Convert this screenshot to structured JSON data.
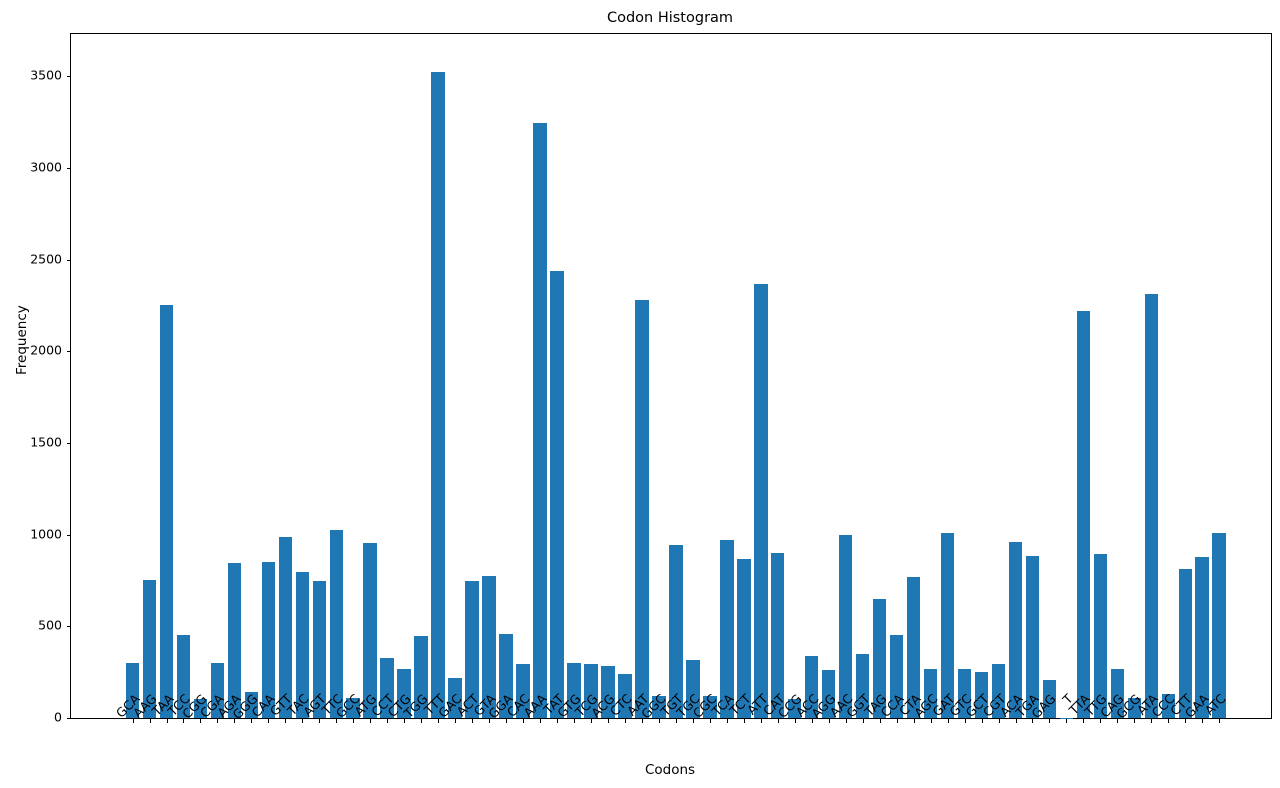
{
  "figure": {
    "title": "Codon Histogram",
    "xlabel": "Codons",
    "ylabel": "Frequency"
  },
  "chart_data": {
    "type": "bar",
    "title": "Codon Histogram",
    "xlabel": "Codons",
    "ylabel": "Frequency",
    "bar_color": "#1f77b4",
    "grid": false,
    "legend": "none",
    "ylim": [
      0,
      3730
    ],
    "yticks": [
      0,
      500,
      1000,
      1500,
      2000,
      2500,
      3000,
      3500
    ],
    "categories": [
      "GCA",
      "AAG",
      "TAA",
      "TCC",
      "CGG",
      "CGA",
      "AGA",
      "GGG",
      "CAA",
      "GTT",
      "TAC",
      "AGT",
      "TTC",
      "GCC",
      "ATG",
      "CCT",
      "CTG",
      "TGG",
      "TTT",
      "GAC",
      "ACT",
      "GTA",
      "GGA",
      "CAC",
      "AAA",
      "TAT",
      "GTG",
      "TCG",
      "ACG",
      "CTC",
      "AAT",
      "GGC",
      "TGT",
      "TGC",
      "CGC",
      "TCA",
      "TCT",
      "ATT",
      "CAT",
      "CCG",
      "ACC",
      "AGG",
      "AAC",
      "GGT",
      "TAG",
      "CCA",
      "CTA",
      "AGC",
      "GAT",
      "GTC",
      "GCT",
      "CGT",
      "ACA",
      "TGA",
      "GAG",
      "T",
      "TTA",
      "TTG",
      "CAG",
      "GCG",
      "ATA",
      "CCC",
      "CTT",
      "GAA",
      "ATC"
    ],
    "values": [
      300,
      755,
      2255,
      455,
      105,
      300,
      845,
      140,
      850,
      990,
      795,
      750,
      1025,
      110,
      955,
      330,
      265,
      445,
      3525,
      220,
      750,
      775,
      460,
      295,
      3245,
      2440,
      300,
      295,
      285,
      240,
      2280,
      120,
      945,
      315,
      120,
      970,
      865,
      2365,
      900,
      105,
      340,
      260,
      1000,
      350,
      650,
      455,
      770,
      265,
      1010,
      265,
      250,
      295,
      960,
      885,
      205,
      1,
      2220,
      895,
      270,
      110,
      2310,
      130,
      815,
      880,
      1010
    ]
  }
}
